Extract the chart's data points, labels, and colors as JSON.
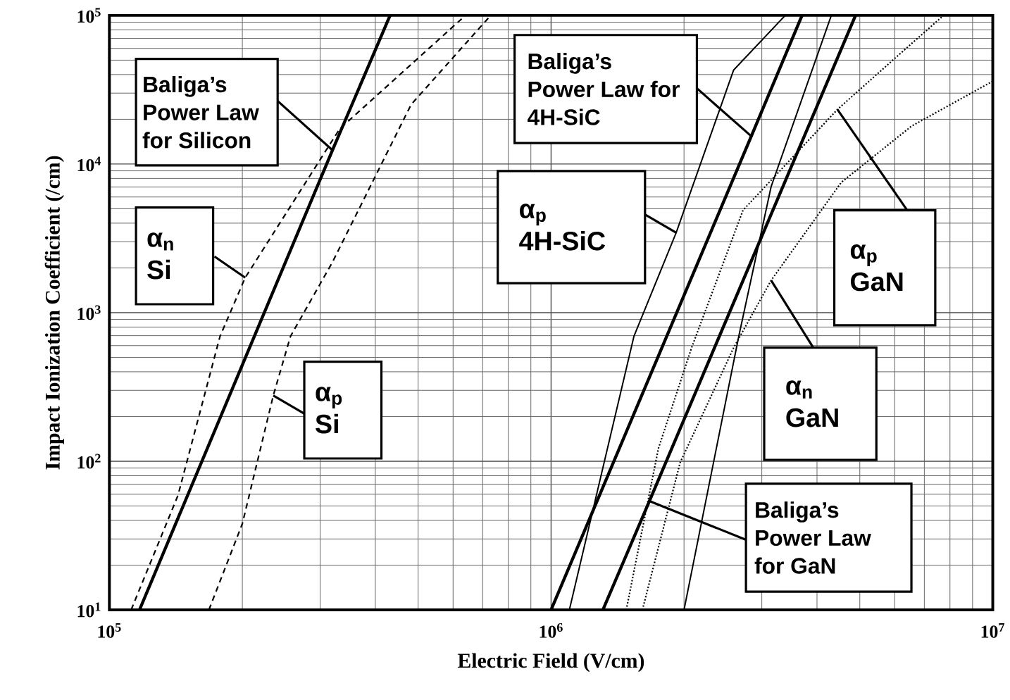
{
  "chart_data": {
    "type": "line",
    "xlabel": "Electric Field   (V/cm)",
    "ylabel": "Impact Ionization Coefficient  (/cm)",
    "log": "xy",
    "grid": true,
    "xlim": [
      100000,
      10000000
    ],
    "ylim": [
      10,
      100000
    ],
    "xticks": [
      {
        "value": 100000,
        "label": "10$^{5}$"
      },
      {
        "value": 1000000,
        "label": "10$^{6}$"
      },
      {
        "value": 10000000,
        "label": "10$^{7}$"
      }
    ],
    "yticks": [
      {
        "value": 10,
        "label": "10$^{1}$"
      },
      {
        "value": 100,
        "label": "10$^{2}$"
      },
      {
        "value": 1000,
        "label": "10$^{3}$"
      },
      {
        "value": 10000,
        "label": "10$^{4}$"
      },
      {
        "value": 100000,
        "label": "10$^{5}$"
      }
    ],
    "series": [
      {
        "color": "#000000",
        "line_style": "solid",
        "x": [
          117000,
          320000,
          432000
        ],
        "values": [
          10,
          12400,
          100000
        ]
      },
      {
        "color": "#000000",
        "line_style": "dashed",
        "x": [
          112000,
          143000,
          178000,
          203000,
          332000,
          640000
        ],
        "values": [
          10,
          59,
          692,
          1720,
          17200,
          100000
        ]
      },
      {
        "color": "#000000",
        "line_style": "dashed",
        "x": [
          168000,
          200000,
          235000,
          257000,
          320000,
          482000,
          730000
        ],
        "values": [
          10,
          38,
          277,
          692,
          2190,
          25100,
          100000
        ]
      },
      {
        "color": "#000000",
        "line_style": "solid",
        "x": [
          1000000,
          2840000,
          3700000
        ],
        "values": [
          10,
          15400,
          100000
        ]
      },
      {
        "color": "#000000",
        "line_style": "solid",
        "x": [
          1100000,
          1540000,
          1920000,
          2590000,
          3390000
        ],
        "values": [
          10,
          692,
          3450,
          42900,
          100000
        ]
      },
      {
        "color": "#000000",
        "line_style": "solid",
        "x": [
          2000000,
          2660000,
          3150000,
          4310000
        ],
        "values": [
          10,
          692,
          7060,
          100000
        ]
      },
      {
        "color": "#000000",
        "line_style": "solid",
        "x": [
          1310000,
          1670000,
          4890000
        ],
        "values": [
          10,
          54,
          100000
        ]
      },
      {
        "color": "#000000",
        "line_style": "dotted",
        "x": [
          1480000,
          1750000,
          2080000,
          2720000,
          4450000,
          6080000,
          7740000
        ],
        "values": [
          10,
          122,
          580,
          4890,
          23300,
          53200,
          100000
        ]
      },
      {
        "color": "#000000",
        "line_style": "dotted",
        "x": [
          1610000,
          1960000,
          2590000,
          3150000,
          4540000,
          6550000,
          10000000
        ],
        "values": [
          10,
          98,
          580,
          1650,
          7530,
          18000,
          36100
        ]
      }
    ],
    "annotations": [
      {
        "text": "Baliga’s Power Law for Silicon",
        "x": 320000,
        "y": 12400
      },
      {
        "text": "α$_{n}$ Si",
        "x": 203000,
        "y": 1720
      },
      {
        "text": "α$_{p}$ Si",
        "x": 235000,
        "y": 277
      },
      {
        "text": "Baliga’s Power Law for 4H-SiC",
        "x": 2840000,
        "y": 15400
      },
      {
        "text": "α$_{p}$ 4H-SiC",
        "x": 1920000,
        "y": 3450
      },
      {
        "text": "Baliga’s Power Law for GaN",
        "x": 1670000,
        "y": 54
      },
      {
        "text": "α$_{p}$ GaN",
        "x": 4450000,
        "y": 23300
      },
      {
        "text": "α$_{n}$ GaN",
        "x": 3150000,
        "y": 1650
      }
    ]
  }
}
